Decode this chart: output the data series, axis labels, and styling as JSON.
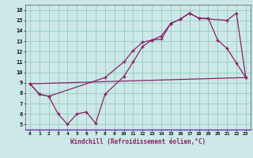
{
  "xlabel": "Windchill (Refroidissement éolien,°C)",
  "xlim": [
    -0.5,
    23.5
  ],
  "ylim": [
    4.5,
    16.5
  ],
  "xticks": [
    0,
    1,
    2,
    3,
    4,
    5,
    6,
    7,
    8,
    9,
    10,
    11,
    12,
    13,
    14,
    15,
    16,
    17,
    18,
    19,
    20,
    21,
    22,
    23
  ],
  "yticks": [
    5,
    6,
    7,
    8,
    9,
    10,
    11,
    12,
    13,
    14,
    15,
    16
  ],
  "bg_color": "#cce8e8",
  "grid_color": "#99ccbb",
  "line_color": "#882266",
  "line1_x": [
    0,
    1,
    2,
    3,
    4,
    5,
    6,
    7,
    8,
    10,
    11,
    12,
    13,
    14,
    15,
    16,
    17,
    18,
    19,
    20,
    21,
    22,
    23
  ],
  "line1_y": [
    8.9,
    7.9,
    7.7,
    6.0,
    5.0,
    6.0,
    6.2,
    5.1,
    7.9,
    9.6,
    11.0,
    12.5,
    13.1,
    13.2,
    14.7,
    15.1,
    15.7,
    15.2,
    15.2,
    13.1,
    12.3,
    10.9,
    9.5
  ],
  "line2_x": [
    0,
    1,
    2,
    8,
    10,
    11,
    12,
    13,
    14,
    15,
    16,
    17,
    18,
    21,
    22,
    23
  ],
  "line2_y": [
    8.9,
    7.9,
    7.7,
    9.5,
    11.0,
    12.1,
    12.9,
    13.1,
    13.5,
    14.7,
    15.1,
    15.7,
    15.2,
    15.0,
    15.7,
    9.5
  ],
  "line3_x": [
    0,
    23
  ],
  "line3_y": [
    8.9,
    9.5
  ]
}
